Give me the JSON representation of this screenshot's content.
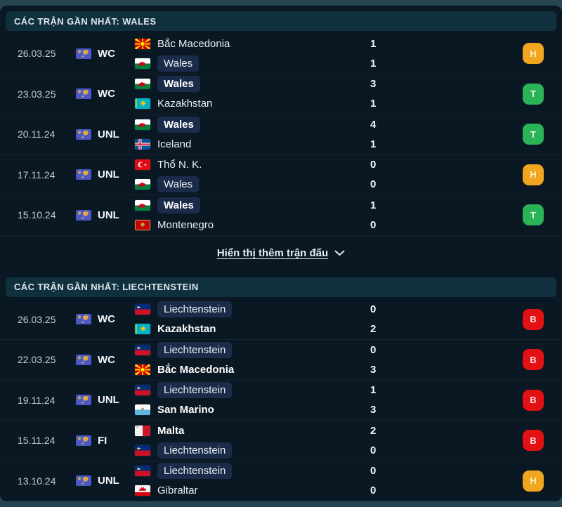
{
  "colors": {
    "outer_background": "#264751",
    "panel_background": "#0a1824",
    "section_header_background": "#11303d",
    "team_highlight_background": "#1b2c4a",
    "result_win": "#2bb357",
    "result_draw": "#f0a61f",
    "result_loss": "#e31111"
  },
  "icons": {
    "competition": "world-flag-icon",
    "show_more": "chevron-down-icon"
  },
  "result_colors": {
    "win": "#2bb357",
    "draw": "#f0a61f",
    "loss": "#e31111"
  },
  "sections": [
    {
      "title": "CÁC TRẬN GẦN NHẤT: WALES",
      "matches": [
        {
          "date": "26.03.25",
          "competition": "WC",
          "teams": [
            {
              "name": "Bắc Macedonia",
              "flag": "north-macedonia",
              "score": "1",
              "bold": false,
              "highlighted": false
            },
            {
              "name": "Wales",
              "flag": "wales",
              "score": "1",
              "bold": false,
              "highlighted": true
            }
          ],
          "result": "draw",
          "result_label": "H"
        },
        {
          "date": "23.03.25",
          "competition": "WC",
          "teams": [
            {
              "name": "Wales",
              "flag": "wales",
              "score": "3",
              "bold": true,
              "highlighted": true
            },
            {
              "name": "Kazakhstan",
              "flag": "kazakhstan",
              "score": "1",
              "bold": false,
              "highlighted": false
            }
          ],
          "result": "win",
          "result_label": "T"
        },
        {
          "date": "20.11.24",
          "competition": "UNL",
          "teams": [
            {
              "name": "Wales",
              "flag": "wales",
              "score": "4",
              "bold": true,
              "highlighted": true
            },
            {
              "name": "Iceland",
              "flag": "iceland",
              "score": "1",
              "bold": false,
              "highlighted": false
            }
          ],
          "result": "win",
          "result_label": "T"
        },
        {
          "date": "17.11.24",
          "competition": "UNL",
          "teams": [
            {
              "name": "Thổ N. K.",
              "flag": "turkey",
              "score": "0",
              "bold": false,
              "highlighted": false
            },
            {
              "name": "Wales",
              "flag": "wales",
              "score": "0",
              "bold": false,
              "highlighted": true
            }
          ],
          "result": "draw",
          "result_label": "H"
        },
        {
          "date": "15.10.24",
          "competition": "UNL",
          "teams": [
            {
              "name": "Wales",
              "flag": "wales",
              "score": "1",
              "bold": true,
              "highlighted": true
            },
            {
              "name": "Montenegro",
              "flag": "montenegro",
              "score": "0",
              "bold": false,
              "highlighted": false
            }
          ],
          "result": "win",
          "result_label": "T"
        }
      ],
      "show_more": {
        "label": "Hiển thị thêm trận đấu"
      }
    },
    {
      "title": "CÁC TRẬN GẦN NHẤT: LIECHTENSTEIN",
      "matches": [
        {
          "date": "26.03.25",
          "competition": "WC",
          "teams": [
            {
              "name": "Liechtenstein",
              "flag": "liechtenstein",
              "score": "0",
              "bold": false,
              "highlighted": true
            },
            {
              "name": "Kazakhstan",
              "flag": "kazakhstan",
              "score": "2",
              "bold": true,
              "highlighted": false
            }
          ],
          "result": "loss",
          "result_label": "B"
        },
        {
          "date": "22.03.25",
          "competition": "WC",
          "teams": [
            {
              "name": "Liechtenstein",
              "flag": "liechtenstein",
              "score": "0",
              "bold": false,
              "highlighted": true
            },
            {
              "name": "Bắc Macedonia",
              "flag": "north-macedonia",
              "score": "3",
              "bold": true,
              "highlighted": false
            }
          ],
          "result": "loss",
          "result_label": "B"
        },
        {
          "date": "19.11.24",
          "competition": "UNL",
          "teams": [
            {
              "name": "Liechtenstein",
              "flag": "liechtenstein",
              "score": "1",
              "bold": false,
              "highlighted": true
            },
            {
              "name": "San Marino",
              "flag": "san-marino",
              "score": "3",
              "bold": true,
              "highlighted": false
            }
          ],
          "result": "loss",
          "result_label": "B"
        },
        {
          "date": "15.11.24",
          "competition": "FI",
          "teams": [
            {
              "name": "Malta",
              "flag": "malta",
              "score": "2",
              "bold": true,
              "highlighted": false
            },
            {
              "name": "Liechtenstein",
              "flag": "liechtenstein",
              "score": "0",
              "bold": false,
              "highlighted": true
            }
          ],
          "result": "loss",
          "result_label": "B"
        },
        {
          "date": "13.10.24",
          "competition": "UNL",
          "teams": [
            {
              "name": "Liechtenstein",
              "flag": "liechtenstein",
              "score": "0",
              "bold": false,
              "highlighted": true
            },
            {
              "name": "Gibraltar",
              "flag": "gibraltar",
              "score": "0",
              "bold": false,
              "highlighted": false
            }
          ],
          "result": "draw",
          "result_label": "H"
        }
      ]
    }
  ]
}
